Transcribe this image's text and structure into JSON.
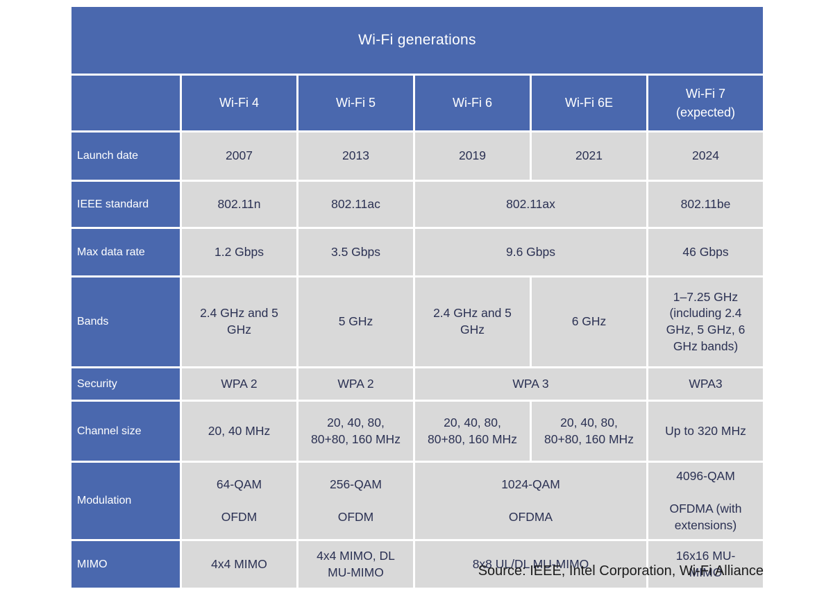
{
  "chart_data": {
    "type": "table",
    "title": "Wi-Fi generations",
    "columns": [
      "Wi-Fi 4",
      "Wi-Fi 5",
      "Wi-Fi 6",
      "Wi-Fi 6E",
      "Wi-Fi 7\n(expected)"
    ],
    "rows": [
      {
        "label": "Launch date",
        "cells": [
          {
            "value": "2007",
            "span": 1
          },
          {
            "value": "2013",
            "span": 1
          },
          {
            "value": "2019",
            "span": 1
          },
          {
            "value": "2021",
            "span": 1
          },
          {
            "value": "2024",
            "span": 1
          }
        ]
      },
      {
        "label": "IEEE standard",
        "cells": [
          {
            "value": "802.11n",
            "span": 1
          },
          {
            "value": "802.11ac",
            "span": 1
          },
          {
            "value": "802.11ax",
            "span": 2
          },
          {
            "value": "802.11be",
            "span": 1
          }
        ]
      },
      {
        "label": "Max data rate",
        "cells": [
          {
            "value": "1.2 Gbps",
            "span": 1
          },
          {
            "value": "3.5 Gbps",
            "span": 1
          },
          {
            "value": "9.6 Gbps",
            "span": 2
          },
          {
            "value": "46 Gbps",
            "span": 1
          }
        ]
      },
      {
        "label": "Bands",
        "cells": [
          {
            "value": "2.4 GHz and 5 GHz",
            "span": 1
          },
          {
            "value": "5 GHz",
            "span": 1
          },
          {
            "value": "2.4 GHz and 5 GHz",
            "span": 1
          },
          {
            "value": "6 GHz",
            "span": 1
          },
          {
            "value": "1–7.25 GHz (including 2.4 GHz, 5 GHz, 6 GHz bands)",
            "span": 1
          }
        ]
      },
      {
        "label": "Security",
        "cells": [
          {
            "value": "WPA 2",
            "span": 1
          },
          {
            "value": "WPA 2",
            "span": 1
          },
          {
            "value": "WPA 3",
            "span": 2
          },
          {
            "value": "WPA3",
            "span": 1
          }
        ]
      },
      {
        "label": "Channel size",
        "cells": [
          {
            "value": "20, 40 MHz",
            "span": 1
          },
          {
            "value": "20, 40, 80, 80+80, 160 MHz",
            "span": 1
          },
          {
            "value": "20, 40, 80, 80+80, 160 MHz",
            "span": 1
          },
          {
            "value": "20, 40, 80, 80+80, 160 MHz",
            "span": 1
          },
          {
            "value": "Up to 320 MHz",
            "span": 1
          }
        ]
      },
      {
        "label": "Modulation",
        "cells": [
          {
            "value": "64-QAM\n\nOFDM",
            "span": 1
          },
          {
            "value": "256-QAM\n\nOFDM",
            "span": 1
          },
          {
            "value": "1024-QAM\n\nOFDMA",
            "span": 2
          },
          {
            "value": "4096-QAM\n\nOFDMA (with extensions)",
            "span": 1
          }
        ]
      },
      {
        "label": "MIMO",
        "cells": [
          {
            "value": "4x4 MIMO",
            "span": 1
          },
          {
            "value": "4x4 MIMO, DL MU-MIMO",
            "span": 1
          },
          {
            "value": "8x8 UL/DL MU-MIMO",
            "span": 2
          },
          {
            "value": "16x16 MU-\nMIMO",
            "span": 1
          }
        ]
      }
    ]
  },
  "source_note": "Source: IEEE, Intel Corporation, Wi-Fi Alliance",
  "colors": {
    "header_blue": "#4A68AE",
    "cell_gray": "#D9D9D9",
    "data_text": "#2B3153",
    "header_text": "#FFFFFF",
    "gridline": "#FFFFFF"
  }
}
